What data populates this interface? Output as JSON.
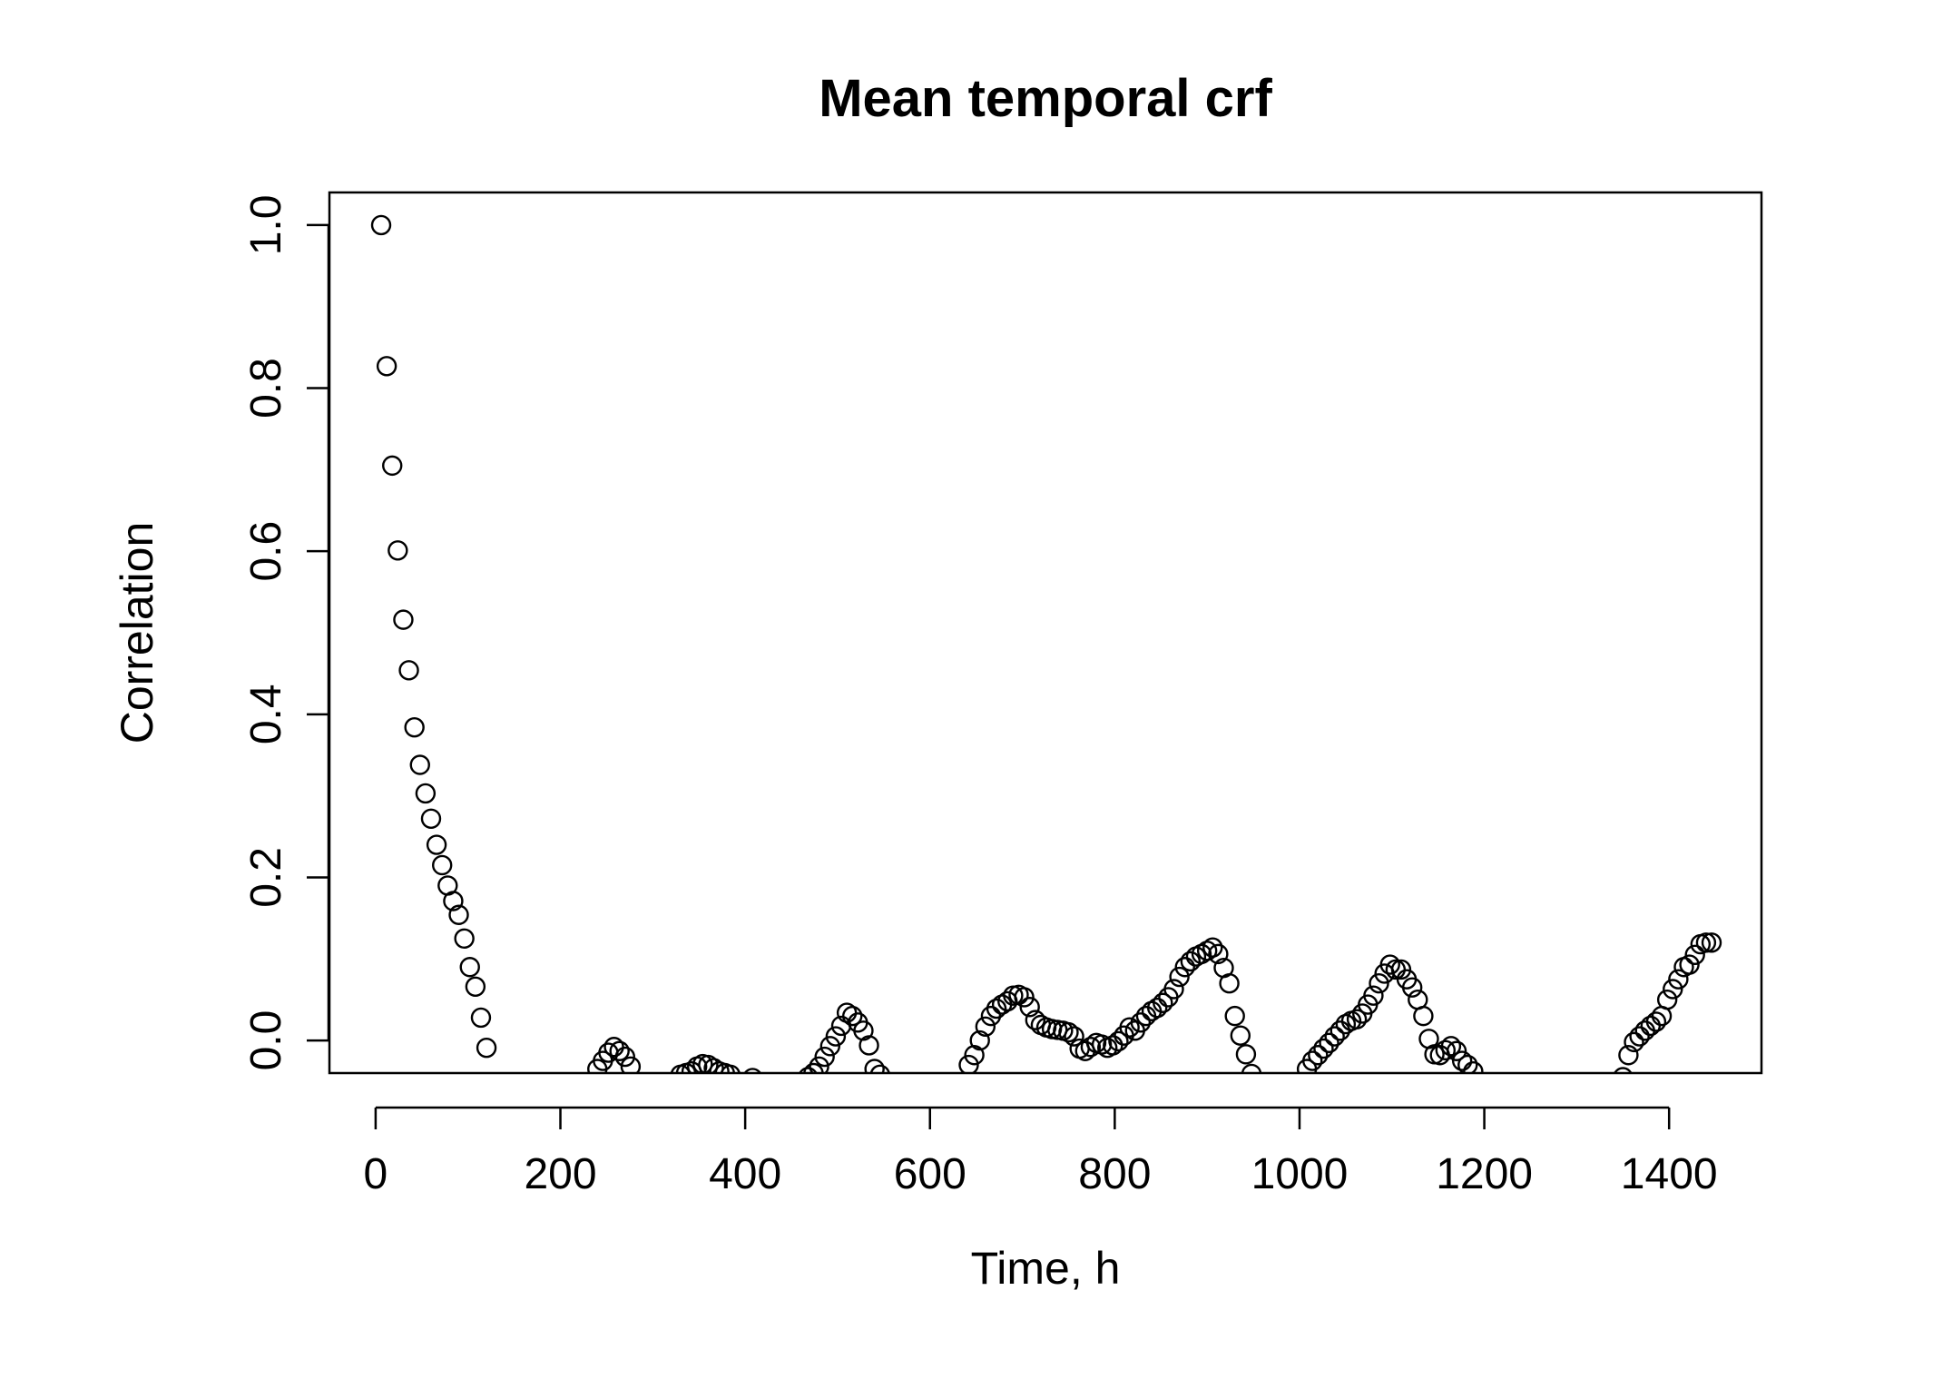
{
  "chart_data": {
    "type": "scatter",
    "title": "Mean temporal crf",
    "xlabel": "Time, h",
    "ylabel": "Correlation",
    "xlim": [
      -50,
      1500
    ],
    "ylim": [
      -0.04,
      1.04
    ],
    "xticks": [
      0,
      200,
      400,
      600,
      800,
      1000,
      1200,
      1400
    ],
    "xtick_labels": [
      "0",
      "200",
      "400",
      "600",
      "800",
      "1000",
      "1200",
      "1400"
    ],
    "yticks": [
      0.0,
      0.2,
      0.4,
      0.6,
      0.8,
      1.0
    ],
    "ytick_labels": [
      "0.0",
      "0.2",
      "0.4",
      "0.6",
      "0.8",
      "1.0"
    ],
    "grid": false,
    "marker": "open-circle",
    "series": [
      {
        "x": [
          6,
          12,
          18,
          24,
          30,
          36,
          42,
          48,
          54,
          60,
          66,
          72,
          78,
          84,
          90,
          96,
          102,
          108,
          114,
          120,
          240,
          246,
          252,
          258,
          264,
          270,
          276,
          330,
          336,
          342,
          348,
          354,
          360,
          366,
          372,
          378,
          384,
          408,
          468,
          474,
          480,
          486,
          492,
          498,
          504,
          510,
          516,
          522,
          528,
          534,
          540,
          546,
          642,
          648,
          654,
          660,
          666,
          672,
          678,
          684,
          690,
          696,
          702,
          708,
          714,
          720,
          726,
          732,
          738,
          744,
          750,
          756,
          762,
          768,
          774,
          780,
          786,
          792,
          798,
          804,
          810,
          816,
          822,
          828,
          834,
          840,
          846,
          852,
          858,
          864,
          870,
          876,
          882,
          888,
          894,
          900,
          906,
          912,
          918,
          924,
          930,
          936,
          942,
          948,
          1008,
          1014,
          1020,
          1026,
          1032,
          1038,
          1044,
          1050,
          1056,
          1062,
          1068,
          1074,
          1080,
          1086,
          1092,
          1098,
          1104,
          1110,
          1116,
          1122,
          1128,
          1134,
          1140,
          1146,
          1152,
          1158,
          1164,
          1170,
          1176,
          1182,
          1188,
          1350,
          1356,
          1362,
          1368,
          1374,
          1380,
          1386,
          1392,
          1398,
          1404,
          1410,
          1416,
          1422,
          1428,
          1434,
          1440,
          1446
        ],
        "y": [
          1.0,
          0.827,
          0.705,
          0.601,
          0.516,
          0.454,
          0.384,
          0.338,
          0.303,
          0.272,
          0.24,
          0.215,
          0.19,
          0.171,
          0.154,
          0.125,
          0.09,
          0.066,
          0.028,
          -0.009,
          -0.035,
          -0.025,
          -0.015,
          -0.008,
          -0.013,
          -0.02,
          -0.032,
          -0.042,
          -0.04,
          -0.038,
          -0.032,
          -0.029,
          -0.03,
          -0.034,
          -0.038,
          -0.04,
          -0.042,
          -0.046,
          -0.045,
          -0.04,
          -0.032,
          -0.02,
          -0.007,
          0.005,
          0.018,
          0.034,
          0.03,
          0.022,
          0.012,
          -0.006,
          -0.035,
          -0.042,
          -0.03,
          -0.018,
          0.0,
          0.017,
          0.03,
          0.039,
          0.044,
          0.048,
          0.055,
          0.056,
          0.053,
          0.041,
          0.025,
          0.019,
          0.016,
          0.014,
          0.013,
          0.012,
          0.01,
          0.005,
          -0.01,
          -0.013,
          -0.008,
          -0.003,
          -0.005,
          -0.009,
          -0.006,
          -0.001,
          0.006,
          0.016,
          0.012,
          0.022,
          0.03,
          0.036,
          0.04,
          0.046,
          0.053,
          0.063,
          0.078,
          0.09,
          0.097,
          0.103,
          0.106,
          0.11,
          0.114,
          0.106,
          0.089,
          0.07,
          0.03,
          0.006,
          -0.017,
          -0.041,
          -0.035,
          -0.025,
          -0.018,
          -0.01,
          -0.003,
          0.005,
          0.012,
          0.02,
          0.024,
          0.026,
          0.033,
          0.044,
          0.055,
          0.07,
          0.082,
          0.093,
          0.087,
          0.087,
          0.075,
          0.065,
          0.05,
          0.03,
          0.002,
          -0.017,
          -0.018,
          -0.012,
          -0.007,
          -0.013,
          -0.025,
          -0.03,
          -0.038,
          -0.045,
          -0.018,
          -0.002,
          0.005,
          0.012,
          0.018,
          0.023,
          0.03,
          0.05,
          0.063,
          0.075,
          0.09,
          0.093,
          0.105,
          0.118,
          0.12,
          0.12
        ]
      }
    ]
  }
}
